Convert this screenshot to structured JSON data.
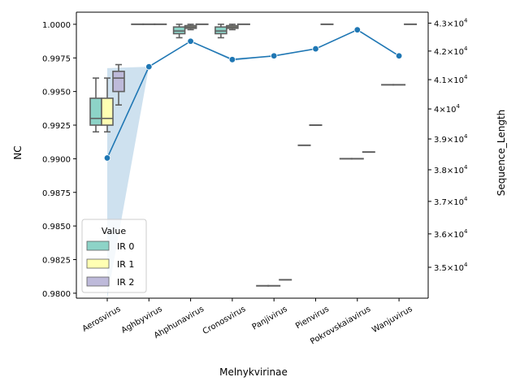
{
  "chart_data": {
    "type": "box+line (dual axis)",
    "xlabel": "Melnykvirinae",
    "ylabel_left": "NC",
    "ylabel_right": "Sequence_Length",
    "ylim_left": [
      0.97963,
      1.0009
    ],
    "y_ticks_left": [
      "0.9800",
      "0.9825",
      "0.9850",
      "0.9875",
      "0.9900",
      "0.9925",
      "0.9950",
      "0.9975",
      "1.0000"
    ],
    "ylim_right_log": [
      34100,
      43400
    ],
    "y_ticks_right": [
      {
        "value": 35000,
        "base": "3.5",
        "exp": "10",
        "pow": "4"
      },
      {
        "value": 36000,
        "base": "3.6",
        "exp": "10",
        "pow": "4"
      },
      {
        "value": 37000,
        "base": "3.7",
        "exp": "10",
        "pow": "4"
      },
      {
        "value": 38000,
        "base": "3.8",
        "exp": "10",
        "pow": "4"
      },
      {
        "value": 39000,
        "base": "3.9",
        "exp": "10",
        "pow": "4"
      },
      {
        "value": 40000,
        "base": "4",
        "exp": "10",
        "pow": "4"
      },
      {
        "value": 41000,
        "base": "4.1",
        "exp": "10",
        "pow": "4"
      },
      {
        "value": 42000,
        "base": "4.2",
        "exp": "10",
        "pow": "4"
      },
      {
        "value": 43000,
        "base": "4.3",
        "exp": "10",
        "pow": "4"
      }
    ],
    "categories": [
      "Aerosvirus",
      "Aghbyvirus",
      "Ahphunavirus",
      "Cronosvirus",
      "Panjivirus",
      "Pienvirus",
      "Pokrovskaiavirus",
      "Wanjuvirus"
    ],
    "legend": {
      "title": "Value",
      "position": "lower-left",
      "items": [
        {
          "label": "IR 0",
          "color": "#8dd3c7"
        },
        {
          "label": "IR 1",
          "color": "#ffffb3"
        },
        {
          "label": "IR 2",
          "color": "#bebada"
        }
      ]
    },
    "box_series": [
      {
        "name": "IR 0",
        "color": "#8dd3c7",
        "boxes": [
          {
            "cat": 0,
            "min": 0.992,
            "q1": 0.9925,
            "med": 0.993,
            "q3": 0.9945,
            "max": 0.996
          },
          {
            "cat": 1,
            "min": 1.0,
            "q1": 1.0,
            "med": 1.0,
            "q3": 1.0,
            "max": 1.0
          },
          {
            "cat": 2,
            "min": 0.999,
            "q1": 0.9993,
            "med": 0.9995,
            "q3": 0.9998,
            "max": 1.0
          },
          {
            "cat": 3,
            "min": 0.999,
            "q1": 0.9993,
            "med": 0.9995,
            "q3": 0.9998,
            "max": 1.0
          },
          {
            "cat": 4,
            "min": 0.98055,
            "q1": 0.98055,
            "med": 0.98055,
            "q3": 0.98055,
            "max": 0.98055
          },
          {
            "cat": 5,
            "min": 0.991,
            "q1": 0.991,
            "med": 0.991,
            "q3": 0.991,
            "max": 0.991
          },
          {
            "cat": 6,
            "min": 0.99,
            "q1": 0.99,
            "med": 0.99,
            "q3": 0.99,
            "max": 0.99
          },
          {
            "cat": 7,
            "min": 0.9955,
            "q1": 0.9955,
            "med": 0.9955,
            "q3": 0.9955,
            "max": 0.9955
          }
        ]
      },
      {
        "name": "IR 1",
        "color": "#ffffb3",
        "boxes": [
          {
            "cat": 0,
            "min": 0.992,
            "q1": 0.9925,
            "med": 0.993,
            "q3": 0.9945,
            "max": 0.996
          },
          {
            "cat": 1,
            "min": 1.0,
            "q1": 1.0,
            "med": 1.0,
            "q3": 1.0,
            "max": 1.0
          },
          {
            "cat": 2,
            "min": 0.9996,
            "q1": 0.9997,
            "med": 0.9998,
            "q3": 0.9999,
            "max": 1.0
          },
          {
            "cat": 3,
            "min": 0.9996,
            "q1": 0.9997,
            "med": 0.9998,
            "q3": 0.9999,
            "max": 1.0
          },
          {
            "cat": 4,
            "min": 0.98055,
            "q1": 0.98055,
            "med": 0.98055,
            "q3": 0.98055,
            "max": 0.98055
          },
          {
            "cat": 5,
            "min": 0.9925,
            "q1": 0.9925,
            "med": 0.9925,
            "q3": 0.9925,
            "max": 0.9925
          },
          {
            "cat": 6,
            "min": 0.99,
            "q1": 0.99,
            "med": 0.99,
            "q3": 0.99,
            "max": 0.99
          },
          {
            "cat": 7,
            "min": 0.9955,
            "q1": 0.9955,
            "med": 0.9955,
            "q3": 0.9955,
            "max": 0.9955
          }
        ]
      },
      {
        "name": "IR 2",
        "color": "#bebada",
        "boxes": [
          {
            "cat": 0,
            "min": 0.994,
            "q1": 0.995,
            "med": 0.996,
            "q3": 0.9965,
            "max": 0.997
          },
          {
            "cat": 1,
            "min": 1.0,
            "q1": 1.0,
            "med": 1.0,
            "q3": 1.0,
            "max": 1.0
          },
          {
            "cat": 2,
            "min": 1.0,
            "q1": 1.0,
            "med": 1.0,
            "q3": 1.0,
            "max": 1.0
          },
          {
            "cat": 3,
            "min": 1.0,
            "q1": 1.0,
            "med": 1.0,
            "q3": 1.0,
            "max": 1.0
          },
          {
            "cat": 4,
            "min": 0.981,
            "q1": 0.981,
            "med": 0.981,
            "q3": 0.981,
            "max": 0.981
          },
          {
            "cat": 5,
            "min": 1.0,
            "q1": 1.0,
            "med": 1.0,
            "q3": 1.0,
            "max": 1.0
          },
          {
            "cat": 6,
            "min": 0.9905,
            "q1": 0.9905,
            "med": 0.9905,
            "q3": 0.9905,
            "max": 0.9905
          },
          {
            "cat": 7,
            "min": 1.0,
            "q1": 1.0,
            "med": 1.0,
            "q3": 1.0,
            "max": 1.0
          }
        ]
      }
    ],
    "line_series": {
      "name": "Sequence_Length",
      "color": "#1f77b4",
      "values": [
        38380,
        41450,
        42350,
        41700,
        41830,
        42080,
        42760,
        41830
      ],
      "ci_lower": [
        34100,
        41450,
        42350,
        41650,
        41830,
        42080,
        42760,
        41830
      ],
      "ci_upper": [
        41400,
        41450,
        42350,
        41750,
        41830,
        42080,
        42760,
        41830
      ]
    }
  }
}
